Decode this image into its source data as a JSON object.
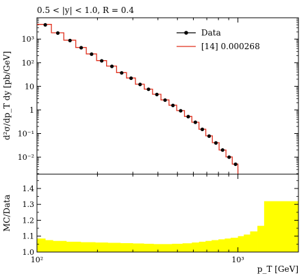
{
  "chart_data": [
    {
      "type": "line",
      "title": "0.5 < |y| < 1.0, R = 0.4",
      "ylabel": "d²σ/dp_T dy [pb/GeV]",
      "xscale": "log",
      "yscale": "log",
      "xlim": [
        100,
        2000
      ],
      "ylim": [
        0.0019,
        8000
      ],
      "y_ticks": [
        {
          "value": 0.01,
          "label": "10⁻²"
        },
        {
          "value": 0.1,
          "label": "10⁻¹"
        },
        {
          "value": 1,
          "label": "1"
        },
        {
          "value": 10,
          "label": "10"
        },
        {
          "value": 100,
          "label": "10²"
        },
        {
          "value": 1000,
          "label": "10³"
        }
      ],
      "legend": {
        "position": "top-right"
      },
      "series": [
        {
          "name": "Data",
          "style": "points",
          "color": "#000000",
          "x": [
            110,
            127,
            146,
            166,
            187,
            210,
            236,
            264,
            294,
            326,
            359,
            395,
            434,
            475,
            519,
            566,
            614,
            665,
            719,
            777,
            839,
            904,
            973
          ],
          "y": [
            4000,
            1800,
            870,
            430,
            230,
            120,
            70,
            37,
            22,
            12,
            7.5,
            4.5,
            2.6,
            1.55,
            0.92,
            0.52,
            0.3,
            0.15,
            0.078,
            0.04,
            0.02,
            0.01,
            0.005
          ]
        },
        {
          "name": "[14] 0.000268",
          "style": "step",
          "color": "#e0301e",
          "edges": [
            100,
            118,
            136,
            156,
            176,
            198,
            222,
            249,
            279,
            309,
            342,
            376,
            414,
            454,
            496,
            542,
            590,
            640,
            692,
            746,
            806,
            872,
            937,
            1000
          ],
          "values": [
            4200,
            1850,
            900,
            440,
            235,
            123,
            72,
            38,
            22.5,
            12.3,
            7.6,
            4.6,
            2.65,
            1.58,
            0.94,
            0.53,
            0.3,
            0.152,
            0.08,
            0.041,
            0.02,
            0.0102,
            0.0051
          ]
        }
      ]
    },
    {
      "type": "area",
      "ylabel": "MC/Data",
      "xlabel": "p_T [GeV]",
      "xscale": "log",
      "xlim": [
        100,
        2000
      ],
      "ylim": [
        1.0,
        1.49
      ],
      "x_ticks": [
        {
          "value": 100,
          "label": "10²"
        },
        {
          "value": 1000,
          "label": "10³"
        }
      ],
      "y_ticks": [
        {
          "value": 1.0,
          "label": "1.0"
        },
        {
          "value": 1.1,
          "label": "1.1"
        },
        {
          "value": 1.2,
          "label": "1.2"
        },
        {
          "value": 1.3,
          "label": "1.3"
        },
        {
          "value": 1.4,
          "label": "1.4"
        }
      ],
      "band_color": "#ffff00",
      "band": {
        "edges": [
          100,
          110,
          120,
          140,
          165,
          195,
          225,
          260,
          300,
          340,
          380,
          420,
          470,
          530,
          590,
          640,
          690,
          740,
          800,
          860,
          920,
          1000,
          1070,
          1150,
          1250,
          1350,
          2000
        ],
        "upper": [
          1.085,
          1.075,
          1.07,
          1.065,
          1.062,
          1.06,
          1.058,
          1.056,
          1.054,
          1.052,
          1.05,
          1.05,
          1.052,
          1.055,
          1.06,
          1.065,
          1.07,
          1.075,
          1.08,
          1.085,
          1.09,
          1.1,
          1.11,
          1.13,
          1.165,
          1.32
        ],
        "lower": [
          1.0,
          1.0,
          1.0,
          1.0,
          1.0,
          1.0,
          1.0,
          1.0,
          1.0,
          1.0,
          1.0,
          1.0,
          1.0,
          1.0,
          1.0,
          1.0,
          1.0,
          1.0,
          1.0,
          1.0,
          1.0,
          1.0,
          1.0,
          1.0,
          1.0,
          1.0
        ]
      }
    }
  ]
}
